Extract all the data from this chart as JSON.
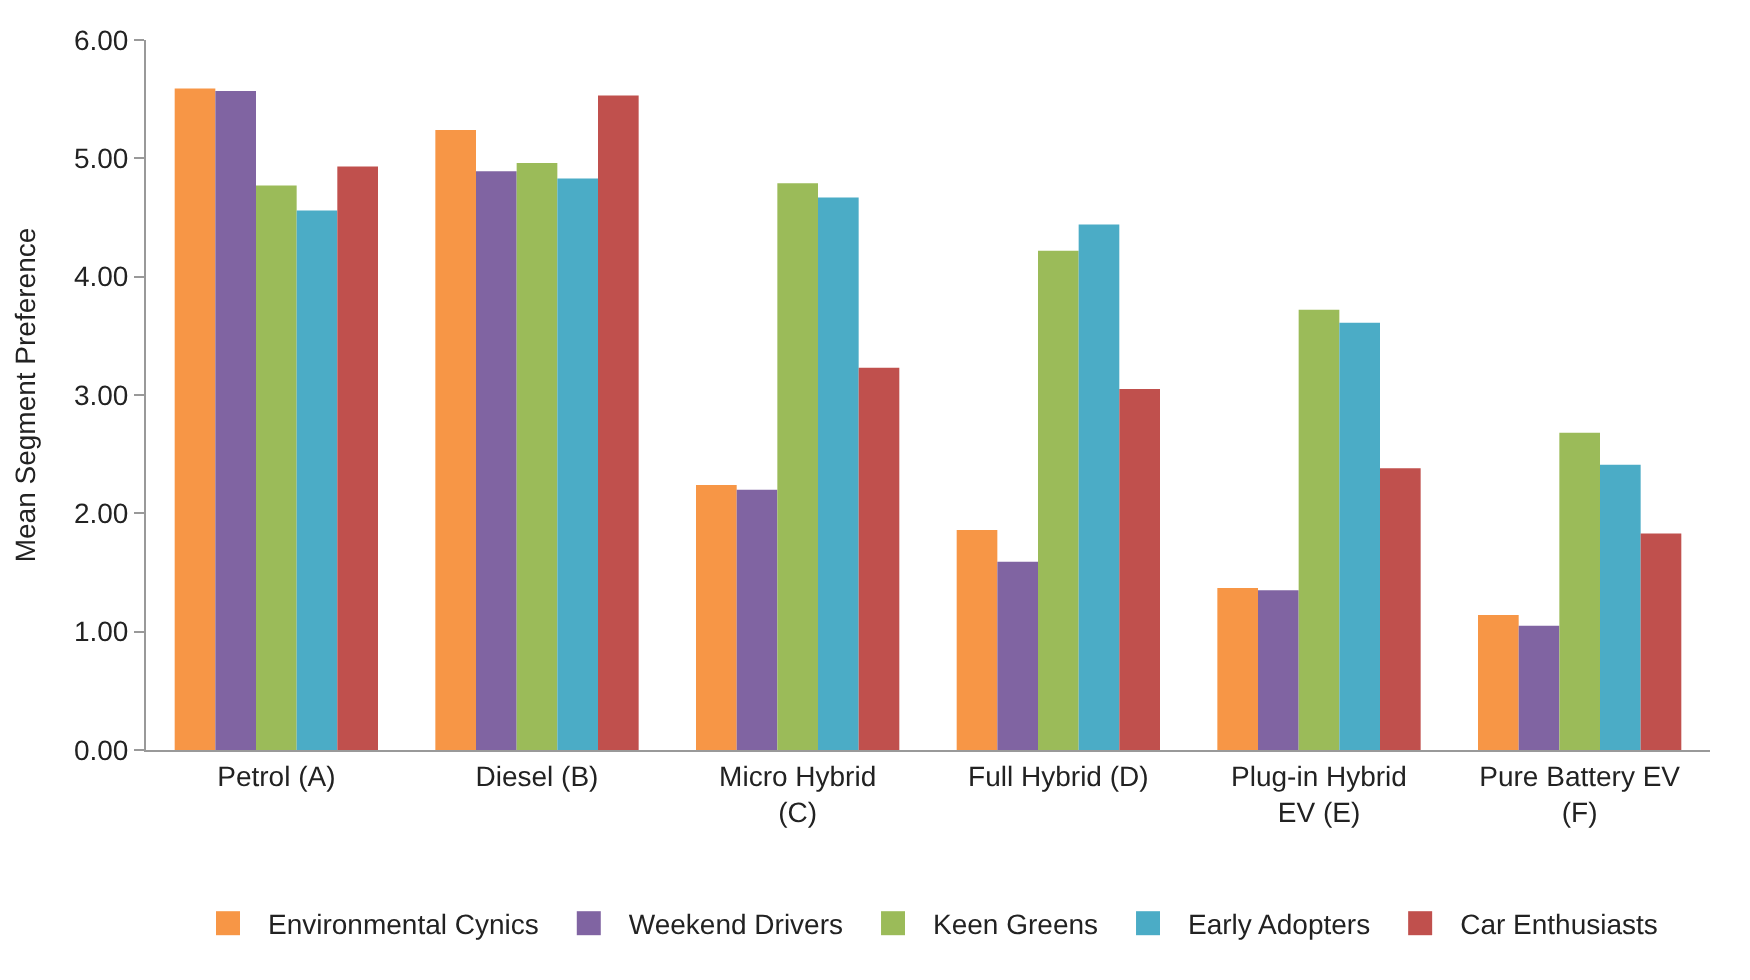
{
  "chart_data": {
    "type": "bar",
    "ylabel": "Mean Segment Preference",
    "categories": [
      "Petrol (A)",
      "Diesel (B)",
      "Micro Hybrid (C)",
      "Full Hybrid (D)",
      "Plug-in Hybrid EV (E)",
      "Pure Battery EV (F)"
    ],
    "series": [
      {
        "name": "Environmental Cynics",
        "color": "#f79646",
        "values": [
          5.59,
          5.24,
          2.24,
          1.86,
          1.37,
          1.14
        ]
      },
      {
        "name": "Weekend Drivers",
        "color": "#8064a2",
        "values": [
          5.57,
          4.89,
          2.2,
          1.59,
          1.35,
          1.05
        ]
      },
      {
        "name": "Keen Greens",
        "color": "#9bbb59",
        "values": [
          4.77,
          4.96,
          4.79,
          4.22,
          3.72,
          2.68
        ]
      },
      {
        "name": "Early Adopters",
        "color": "#4bacc6",
        "values": [
          4.56,
          4.83,
          4.67,
          4.44,
          3.61,
          2.41
        ]
      },
      {
        "name": "Car Enthusiasts",
        "color": "#c0504d",
        "values": [
          4.93,
          5.53,
          3.23,
          3.05,
          2.38,
          1.83
        ]
      }
    ],
    "ylim": [
      0,
      6
    ],
    "yticks": [
      {
        "value": 0,
        "label": "0.00"
      },
      {
        "value": 1,
        "label": "1.00"
      },
      {
        "value": 2,
        "label": "2.00"
      },
      {
        "value": 3,
        "label": "3.00"
      },
      {
        "value": 4,
        "label": "4.00"
      },
      {
        "value": 5,
        "label": "5.00"
      },
      {
        "value": 6,
        "label": "6.00"
      }
    ],
    "legend": "bottom"
  }
}
